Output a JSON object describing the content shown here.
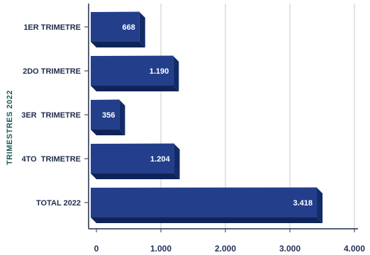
{
  "chart_data": {
    "type": "bar",
    "orientation": "horizontal",
    "categories": [
      "1ER TRIMETRE",
      "2DO TRIMETRE",
      "3ER  TRIMETRE",
      "4TO  TRIMETRE",
      "TOTAL 2022"
    ],
    "values": [
      668,
      1190,
      356,
      1204,
      3418
    ],
    "value_labels": [
      "668",
      "1.190",
      "356",
      "1.204",
      "3.418"
    ],
    "ylabel": "TRIMESTRES 2022",
    "xlabel": "",
    "xlim": [
      0,
      4000
    ],
    "x_ticks": [
      0,
      1000,
      2000,
      3000,
      4000
    ],
    "x_tick_labels": [
      "0",
      "1.000",
      "2.000",
      "3.000",
      "4.000"
    ],
    "grid": "vertical",
    "colors": {
      "bar_front": "#233f8c",
      "bar_top": "#3553a6",
      "bar_side": "#132b66",
      "axis_title": "#1d5a57",
      "grid": "#c8c8c8"
    }
  }
}
